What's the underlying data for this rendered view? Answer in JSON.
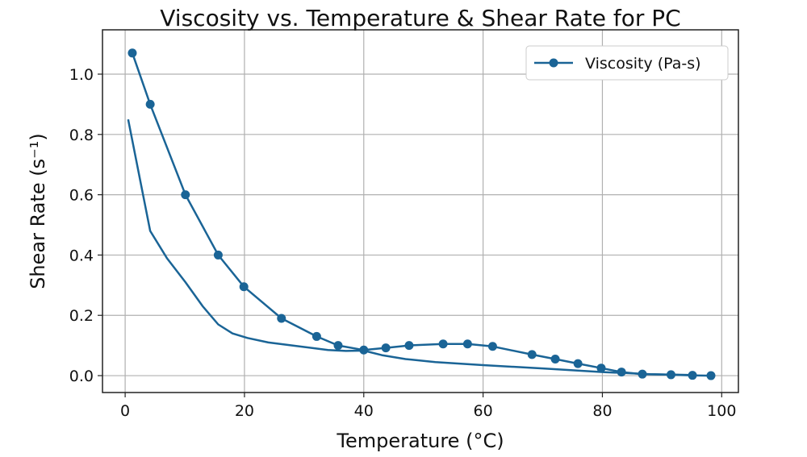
{
  "chart_data": {
    "type": "line",
    "title": "Viscosity vs. Temperature & Shear Rate for PC",
    "xlabel": "Temperature (°C)",
    "ylabel": "Shear Rate (s⁻¹)",
    "xlim": [
      -3.8,
      102.8
    ],
    "ylim": [
      -0.056,
      1.147
    ],
    "xticks": [
      "0",
      "20",
      "40",
      "60",
      "80",
      "100"
    ],
    "yticks": [
      "0.0",
      "0.2",
      "0.4",
      "0.6",
      "0.8",
      "1.0"
    ],
    "grid": true,
    "legend": {
      "position": "top-right",
      "entries": [
        "Viscosity (Pa-s)"
      ]
    },
    "color": "#1a6496",
    "series": [
      {
        "name": "Viscosity (Pa-s)",
        "marker": "circle",
        "x": [
          1.2,
          4.2,
          10.1,
          15.6,
          19.9,
          26.2,
          32.1,
          35.7,
          40,
          43.7,
          47.6,
          53.3,
          57.4,
          61.6,
          68.2,
          72.1,
          75.9,
          79.8,
          83.2,
          86.7,
          91.5,
          95.1,
          98.2
        ],
        "y": [
          1.07,
          0.9,
          0.6,
          0.4,
          0.295,
          0.19,
          0.13,
          0.1,
          0.085,
          0.092,
          0.1,
          0.105,
          0.105,
          0.097,
          0.07,
          0.055,
          0.04,
          0.025,
          0.012,
          0.005,
          0.003,
          0.001,
          0.0
        ]
      },
      {
        "marker": "none",
        "x": [
          0.5,
          4.2,
          7,
          10.1,
          13,
          15.6,
          18,
          20.5,
          24,
          30,
          34,
          37,
          40,
          43,
          47,
          52,
          60,
          70,
          80,
          88,
          95
        ],
        "y": [
          0.85,
          0.48,
          0.39,
          0.31,
          0.23,
          0.17,
          0.14,
          0.125,
          0.11,
          0.095,
          0.085,
          0.082,
          0.083,
          0.068,
          0.055,
          0.045,
          0.035,
          0.024,
          0.012,
          0.005,
          0.002
        ]
      }
    ]
  }
}
